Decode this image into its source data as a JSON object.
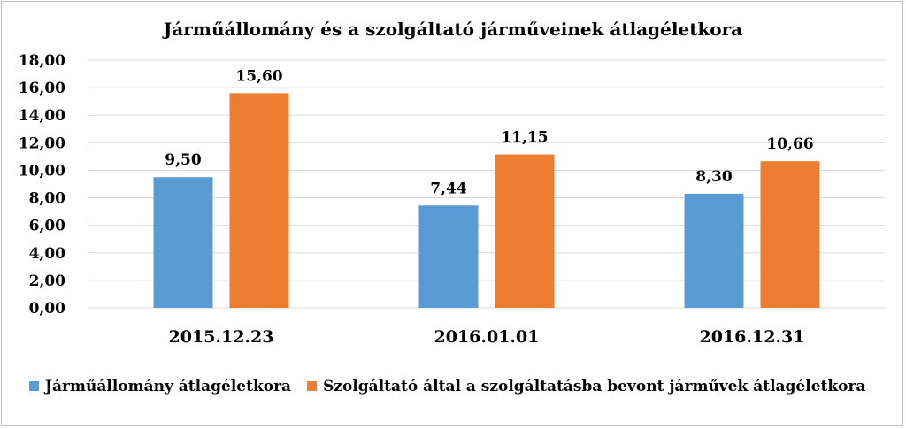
{
  "chart_data": {
    "type": "bar",
    "title": "Járműállomány és a szolgáltató járműveinek átlagéletkora",
    "categories": [
      "2015.12.23",
      "2016.01.01",
      "2016.12.31"
    ],
    "series": [
      {
        "name": "Járműállomány átlagéletkora",
        "color": "#5b9bd5",
        "values": [
          9.5,
          7.44,
          8.3
        ],
        "labels": [
          "9,50",
          "7,44",
          "8,30"
        ]
      },
      {
        "name": "Szolgáltató által a szolgáltatásba bevont járművek átlagéletkora",
        "color": "#ed7d31",
        "values": [
          15.6,
          11.15,
          10.66
        ],
        "labels": [
          "15,60",
          "11,15",
          "10,66"
        ]
      }
    ],
    "ylim": [
      0,
      18
    ],
    "yticks": [
      "0,00",
      "2,00",
      "4,00",
      "6,00",
      "8,00",
      "10,00",
      "12,00",
      "14,00",
      "16,00",
      "18,00"
    ],
    "grid": true,
    "legend": "bottom",
    "xlabel": "",
    "ylabel": ""
  }
}
